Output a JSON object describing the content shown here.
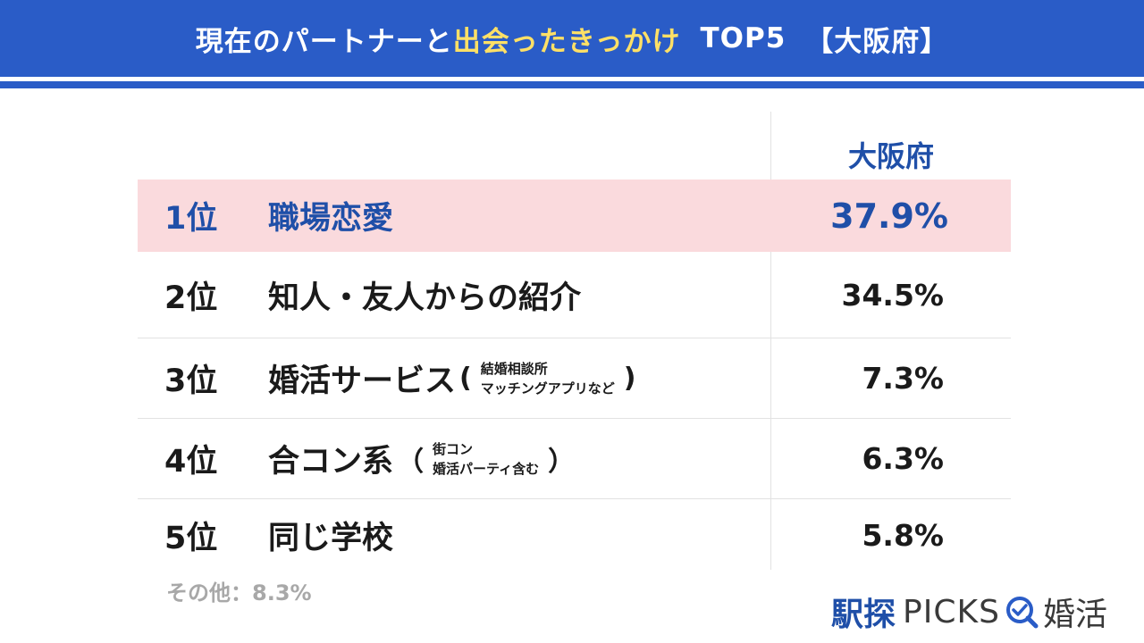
{
  "header": {
    "title_part1": "現在のパートナーと",
    "title_highlight": "出会ったきっかけ",
    "title_part2": "TOP5",
    "title_region": "【大阪府】",
    "colors": {
      "background": "#2a5cc7",
      "text": "#ffffff",
      "highlight": "#ffe066"
    }
  },
  "table": {
    "column_header": "大阪府",
    "rows": [
      {
        "rank": "1位",
        "label": "職場恋愛",
        "value": "37.9%",
        "highlighted": true
      },
      {
        "rank": "2位",
        "label": "知人・友人からの紹介",
        "value": "34.5%"
      },
      {
        "rank": "3位",
        "label": "婚活サービス",
        "note_line1": "結婚相談所",
        "note_line2": "マッチングアプリなど",
        "value": "7.3%"
      },
      {
        "rank": "4位",
        "label": "合コン系",
        "note_line1": "街コン",
        "note_line2": "婚活パーティ含む",
        "value": "6.3%"
      },
      {
        "rank": "5位",
        "label": "同じ学校",
        "value": "5.8%"
      }
    ],
    "colors": {
      "highlight_row": "#fadadd",
      "highlight_text": "#1f4fa8"
    }
  },
  "footer": {
    "other": "その他：8.3%"
  },
  "logo": {
    "brand": "駅探",
    "picks": "PICKS",
    "suffix": "婚活",
    "icon": "magnifier-check-icon"
  }
}
